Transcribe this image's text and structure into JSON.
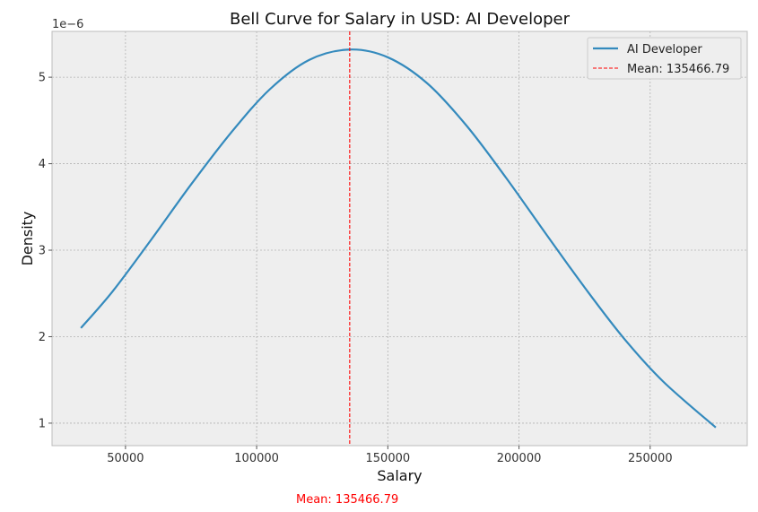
{
  "chart_data": {
    "type": "line",
    "title": "Bell Curve for Salary in USD: AI Developer",
    "xlabel": "Salary",
    "ylabel": "Density",
    "y_scale_label": "1e−6",
    "xlim": [
      22000,
      287000
    ],
    "ylim": [
      0.74,
      5.53
    ],
    "x_ticks": [
      50000,
      100000,
      150000,
      200000,
      250000
    ],
    "y_ticks": [
      1,
      2,
      3,
      4,
      5
    ],
    "grid": true,
    "legend_position": "top-right",
    "series": [
      {
        "name": "AI Developer",
        "color": "#348abd",
        "x": [
          33000,
          45000,
          60000,
          75000,
          90000,
          105000,
          120000,
          135466.79,
          150000,
          165000,
          180000,
          195000,
          210000,
          225000,
          240000,
          255000,
          275000
        ],
        "y": [
          2.1,
          2.52,
          3.13,
          3.76,
          4.35,
          4.86,
          5.2,
          5.32,
          5.23,
          4.93,
          4.44,
          3.84,
          3.2,
          2.57,
          1.98,
          1.48,
          0.95
        ]
      }
    ],
    "mean_line": {
      "label": "Mean: 135466.79",
      "x": 135466.79,
      "color": "#ff0000"
    }
  },
  "footer_text": "Mean: 135466.79"
}
